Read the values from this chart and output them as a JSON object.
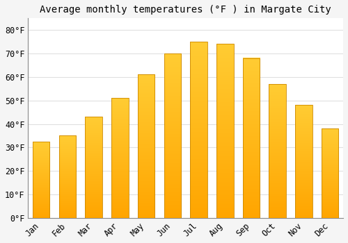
{
  "title": "Average monthly temperatures (°F ) in Margate City",
  "months": [
    "Jan",
    "Feb",
    "Mar",
    "Apr",
    "May",
    "Jun",
    "Jul",
    "Aug",
    "Sep",
    "Oct",
    "Nov",
    "Dec"
  ],
  "values": [
    32.5,
    35.0,
    43.0,
    51.0,
    61.0,
    70.0,
    75.0,
    74.0,
    68.0,
    57.0,
    48.0,
    38.0
  ],
  "bar_color_top": "#FFCC33",
  "bar_color_bottom": "#FFA500",
  "bar_color_edge": "#CC8800",
  "bar_width": 0.65,
  "ylim": [
    0,
    85
  ],
  "yticks": [
    0,
    10,
    20,
    30,
    40,
    50,
    60,
    70,
    80
  ],
  "ytick_labels": [
    "0°F",
    "10°F",
    "20°F",
    "30°F",
    "40°F",
    "50°F",
    "60°F",
    "70°F",
    "80°F"
  ],
  "background_color": "#f5f5f5",
  "plot_bg_color": "#ffffff",
  "grid_color": "#e0e0e0",
  "title_fontsize": 10,
  "tick_fontsize": 8.5,
  "font_family": "monospace"
}
